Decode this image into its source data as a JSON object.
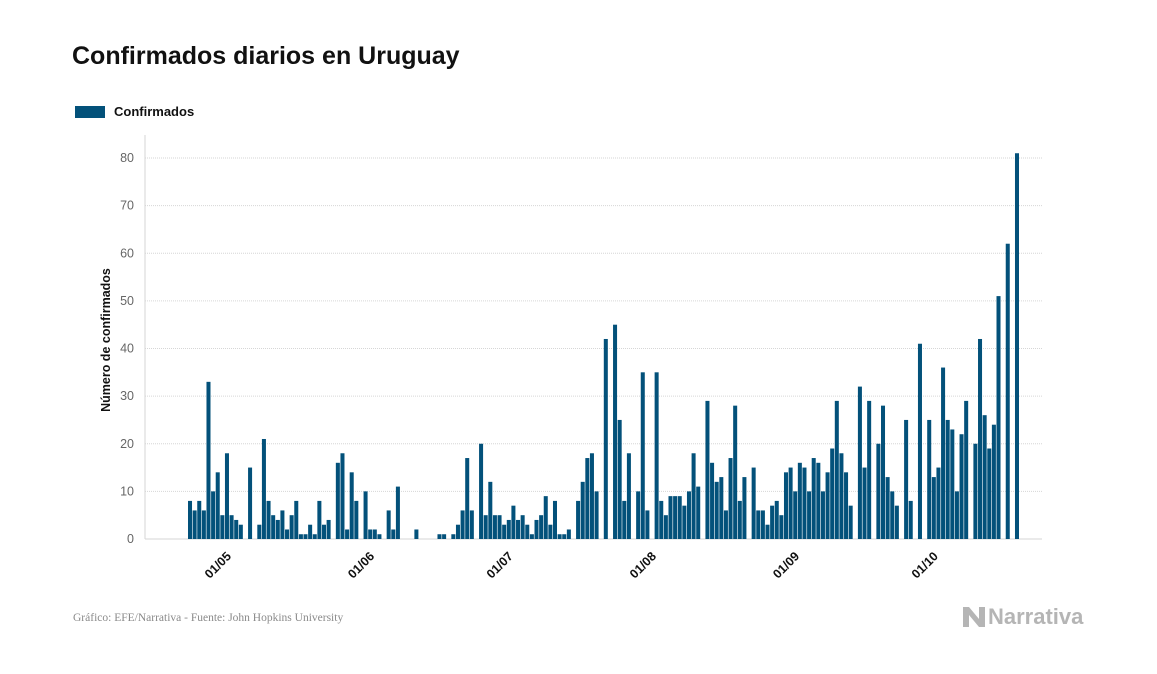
{
  "title": "Confirmados diarios en Uruguay",
  "legend": {
    "label": "Confirmados"
  },
  "colors": {
    "bar": "#03517a",
    "grid": "#d6d6d6",
    "tick": "#666666"
  },
  "footer": {
    "source": "Gráfico: EFE/Narrativa - Fuente: John Hopkins University",
    "brand": "Narrativa",
    "brand_icon": "narrativa-logo-icon"
  },
  "chart_data": {
    "type": "bar",
    "title": "Confirmados diarios en Uruguay",
    "xlabel": "",
    "ylabel": "Número de confirmados",
    "ylim": [
      0,
      80
    ],
    "yticks": [
      0,
      10,
      20,
      30,
      40,
      50,
      60,
      70,
      80
    ],
    "grid": true,
    "legend_position": "top-left",
    "start_date": "2020-04-22",
    "end_date": "2020-10-19",
    "xtick_labels": [
      {
        "date": "2020-05-01",
        "label": "01/05"
      },
      {
        "date": "2020-06-01",
        "label": "01/06"
      },
      {
        "date": "2020-07-01",
        "label": "01/07"
      },
      {
        "date": "2020-08-01",
        "label": "01/08"
      },
      {
        "date": "2020-09-01",
        "label": "01/09"
      },
      {
        "date": "2020-10-01",
        "label": "01/10"
      }
    ],
    "series": [
      {
        "name": "Confirmados",
        "values": [
          8,
          6,
          8,
          6,
          33,
          10,
          14,
          5,
          18,
          5,
          4,
          3,
          0,
          15,
          0,
          3,
          21,
          8,
          5,
          4,
          6,
          2,
          5,
          8,
          1,
          1,
          3,
          1,
          8,
          3,
          4,
          0,
          16,
          18,
          2,
          14,
          8,
          0,
          10,
          2,
          2,
          1,
          0,
          6,
          2,
          11,
          0,
          0,
          0,
          2,
          0,
          0,
          0,
          0,
          1,
          1,
          0,
          1,
          3,
          6,
          17,
          6,
          0,
          20,
          5,
          12,
          5,
          5,
          3,
          4,
          7,
          4,
          5,
          3,
          1,
          4,
          5,
          9,
          3,
          8,
          1,
          1,
          2,
          0,
          8,
          12,
          17,
          18,
          10,
          0,
          42,
          0,
          45,
          25,
          8,
          18,
          0,
          10,
          35,
          6,
          0,
          35,
          8,
          5,
          9,
          9,
          9,
          7,
          10,
          18,
          11,
          0,
          29,
          16,
          12,
          13,
          6,
          17,
          28,
          8,
          13,
          0,
          15,
          6,
          6,
          3,
          7,
          8,
          5,
          14,
          15,
          10,
          16,
          15,
          10,
          17,
          16,
          10,
          14,
          19,
          29,
          18,
          14,
          7,
          0,
          32,
          15,
          29,
          0,
          20,
          28,
          13,
          10,
          7,
          0,
          25,
          8,
          0,
          41,
          0,
          25,
          13,
          15,
          36,
          25,
          23,
          10,
          22,
          29,
          0,
          20,
          42,
          26,
          19,
          24,
          51,
          0,
          62,
          0,
          81
        ]
      }
    ]
  }
}
